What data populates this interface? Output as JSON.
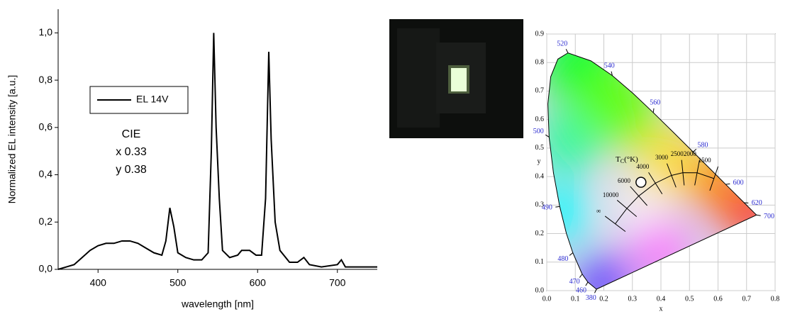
{
  "chart_data": [
    {
      "type": "line",
      "xlabel": "wavelength [nm]",
      "ylabel": "Normalized EL intensity [a.u.]",
      "x": [
        350,
        360,
        370,
        380,
        390,
        400,
        410,
        420,
        430,
        440,
        450,
        460,
        470,
        480,
        485,
        490,
        495,
        500,
        510,
        520,
        530,
        538,
        542,
        545,
        548,
        552,
        556,
        565,
        575,
        580,
        590,
        598,
        605,
        610,
        614,
        617,
        622,
        628,
        640,
        650,
        658,
        665,
        680,
        700,
        705,
        710,
        730,
        750
      ],
      "series": [
        {
          "name": "EL 14V",
          "color": "#000000",
          "values": [
            0.0,
            0.01,
            0.02,
            0.05,
            0.08,
            0.1,
            0.11,
            0.11,
            0.12,
            0.12,
            0.11,
            0.09,
            0.07,
            0.06,
            0.12,
            0.26,
            0.18,
            0.07,
            0.05,
            0.04,
            0.04,
            0.07,
            0.5,
            1.0,
            0.6,
            0.3,
            0.08,
            0.05,
            0.06,
            0.08,
            0.08,
            0.06,
            0.06,
            0.3,
            0.92,
            0.55,
            0.2,
            0.08,
            0.03,
            0.03,
            0.05,
            0.02,
            0.01,
            0.02,
            0.04,
            0.01,
            0.01,
            0.01
          ]
        }
      ],
      "xlim": [
        350,
        750
      ],
      "xticks": [
        400,
        500,
        600,
        700
      ],
      "ylim": [
        0,
        1.1
      ],
      "yticks": [
        {
          "value": 0,
          "label": "0,0"
        },
        {
          "value": 0.2,
          "label": "0,2"
        },
        {
          "value": 0.4,
          "label": "0,4"
        },
        {
          "value": 0.6,
          "label": "0,6"
        },
        {
          "value": 0.8,
          "label": "0,8"
        },
        {
          "value": 1.0,
          "label": "1,0"
        }
      ],
      "legend": "upper left",
      "annotations": [
        "CIE",
        "x 0.33",
        "y 0.38"
      ]
    },
    {
      "type": "scatter",
      "xlabel": "x",
      "ylabel": "y",
      "grid": true,
      "xlim": [
        0,
        0.8
      ],
      "ylim": [
        0,
        0.9
      ],
      "xticks": [
        {
          "value": 0,
          "label": "0.0"
        },
        {
          "value": 0.1,
          "label": "0.1"
        },
        {
          "value": 0.2,
          "label": "0.2"
        },
        {
          "value": 0.3,
          "label": "0.3"
        },
        {
          "value": 0.4,
          "label": "0.4"
        },
        {
          "value": 0.5,
          "label": "0.5"
        },
        {
          "value": 0.6,
          "label": "0.6"
        },
        {
          "value": 0.7,
          "label": "0.7"
        },
        {
          "value": 0.8,
          "label": "0.8"
        }
      ],
      "yticks": [
        {
          "value": 0,
          "label": "0.0"
        },
        {
          "value": 0.1,
          "label": "0.1"
        },
        {
          "value": 0.2,
          "label": "0.2"
        },
        {
          "value": 0.3,
          "label": "0.3"
        },
        {
          "value": 0.4,
          "label": "0.4"
        },
        {
          "value": 0.5,
          "label": "0.5"
        },
        {
          "value": 0.6,
          "label": "0.6"
        },
        {
          "value": 0.7,
          "label": "0.7"
        },
        {
          "value": 0.8,
          "label": "0.8"
        },
        {
          "value": 0.9,
          "label": "0.9"
        }
      ],
      "series": [
        {
          "color": "#ffffff",
          "x": [
            0.33
          ],
          "values": [
            0.38
          ]
        }
      ],
      "spectral_locus": {
        "x": [
          0.1741,
          0.144,
          0.1241,
          0.0913,
          0.0687,
          0.0454,
          0.0235,
          0.0082,
          0.0039,
          0.0139,
          0.0389,
          0.0743,
          0.1547,
          0.2296,
          0.3016,
          0.3731,
          0.4441,
          0.5125,
          0.5752,
          0.627,
          0.6915,
          0.7347
        ],
        "y": [
          0.005,
          0.0297,
          0.0578,
          0.1327,
          0.2007,
          0.295,
          0.4127,
          0.5384,
          0.6548,
          0.7502,
          0.812,
          0.8338,
          0.8059,
          0.7543,
          0.6923,
          0.6245,
          0.5547,
          0.4866,
          0.4242,
          0.3725,
          0.3083,
          0.2653
        ]
      },
      "wavelength_labels": [
        {
          "label": "380",
          "x": 0.1741,
          "y": 0.005
        },
        {
          "label": "460",
          "x": 0.144,
          "y": 0.0297
        },
        {
          "label": "470",
          "x": 0.1241,
          "y": 0.0578
        },
        {
          "label": "480",
          "x": 0.0913,
          "y": 0.1327
        },
        {
          "label": "490",
          "x": 0.0454,
          "y": 0.295
        },
        {
          "label": "500",
          "x": 0.0082,
          "y": 0.5384
        },
        {
          "label": "520",
          "x": 0.0743,
          "y": 0.8338
        },
        {
          "label": "540",
          "x": 0.2296,
          "y": 0.7543
        },
        {
          "label": "560",
          "x": 0.3731,
          "y": 0.6245
        },
        {
          "label": "580",
          "x": 0.5125,
          "y": 0.4866
        },
        {
          "label": "600",
          "x": 0.627,
          "y": 0.3725
        },
        {
          "label": "620",
          "x": 0.6915,
          "y": 0.3083
        },
        {
          "label": "700",
          "x": 0.7347,
          "y": 0.2653
        }
      ],
      "planckian": {
        "labels": [
          "∞",
          "10000",
          "6000",
          "4000",
          "3000",
          "2500",
          "2000",
          "1500"
        ],
        "x": [
          0.2399,
          0.2807,
          0.3221,
          0.3805,
          0.4369,
          0.4769,
          0.5267,
          0.5857
        ],
        "y": [
          0.2342,
          0.2883,
          0.3318,
          0.3768,
          0.4041,
          0.4137,
          0.4133,
          0.3931
        ]
      },
      "tc_label": {
        "main": "T",
        "sub": "C",
        "rest": "(°K)"
      }
    }
  ]
}
